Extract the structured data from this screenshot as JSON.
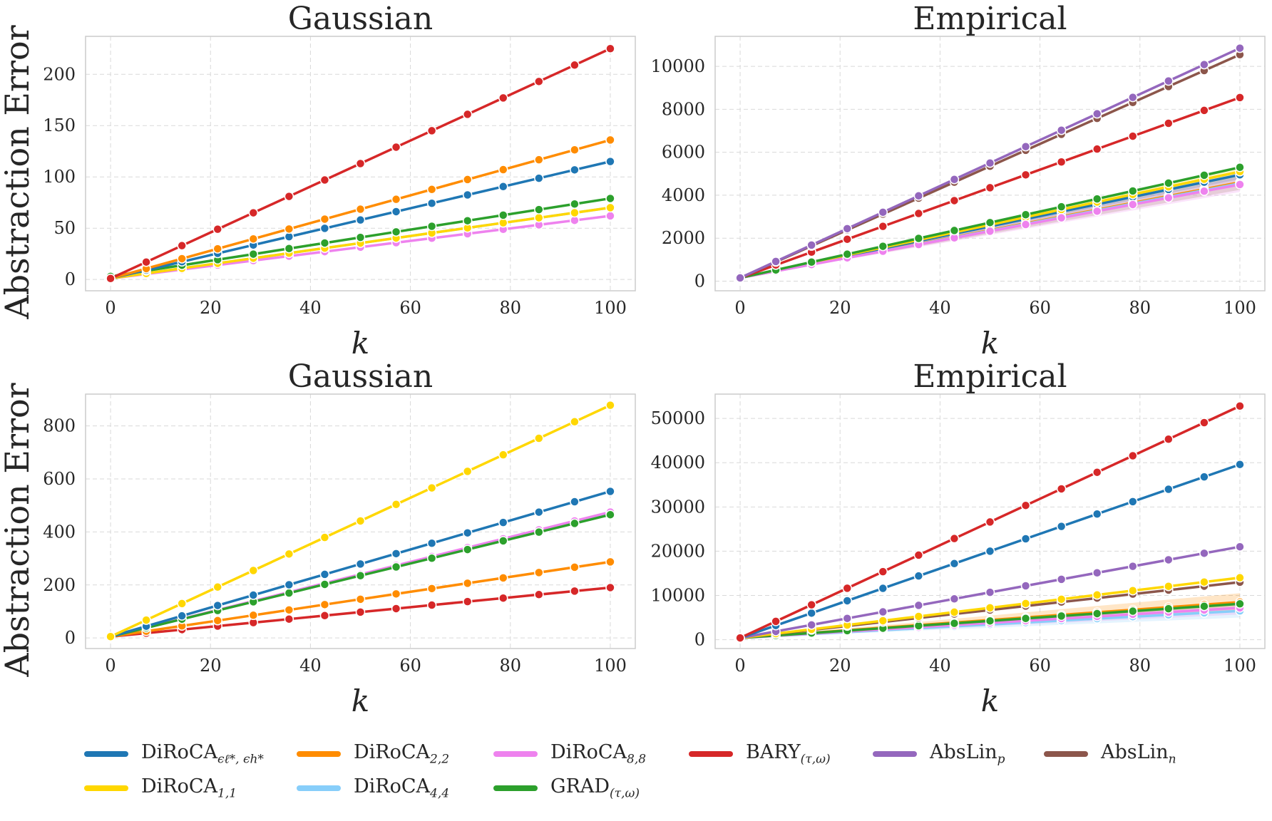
{
  "colors": {
    "grid": "#d9d9d9",
    "axis": "#cccccc",
    "text": "#262626"
  },
  "legend": [
    {
      "key": "diroca_eps",
      "base": "DiRoCA",
      "sub": "ϵℓ*, ϵh*",
      "color": "#1f77b4"
    },
    {
      "key": "diroca_22",
      "base": "DiRoCA",
      "sub": "2,2",
      "color": "#ff8c00"
    },
    {
      "key": "diroca_88",
      "base": "DiRoCA",
      "sub": "8,8",
      "color": "#ee82ee"
    },
    {
      "key": "bary",
      "base": "BARY",
      "sub": "(τ,ω)",
      "color": "#d62728"
    },
    {
      "key": "abslin_p",
      "base": "AbsLin",
      "sub": "p",
      "color": "#9467bd"
    },
    {
      "key": "abslin_n",
      "base": "AbsLin",
      "sub": "n",
      "color": "#8c564b"
    },
    {
      "key": "diroca_11",
      "base": "DiRoCA",
      "sub": "1,1",
      "color": "#ffd700"
    },
    {
      "key": "diroca_44",
      "base": "DiRoCA",
      "sub": "4,4",
      "color": "#87cefa"
    },
    {
      "key": "grad",
      "base": "GRAD",
      "sub": "(τ,ω)",
      "color": "#2ca02c"
    }
  ],
  "chart_data": [
    {
      "type": "line",
      "title": "Gaussian",
      "xlabel": "k",
      "ylabel": "Abstraction Error",
      "xlim": [
        -5,
        105
      ],
      "ylim": [
        -11,
        237
      ],
      "xticks": [
        0,
        20,
        40,
        60,
        80,
        100
      ],
      "yticks": [
        0,
        50,
        100,
        150,
        200
      ],
      "grid": true,
      "k_start": 0,
      "k_end": 100,
      "k_points": 15,
      "series": [
        {
          "key": "diroca_44",
          "start": 1,
          "end": 70,
          "band": 0
        },
        {
          "key": "diroca_88",
          "start": 1,
          "end": 62,
          "band": 0
        },
        {
          "key": "diroca_11",
          "start": 1,
          "end": 70,
          "band": 0
        },
        {
          "key": "grad",
          "start": 3,
          "end": 79,
          "band": 0
        },
        {
          "key": "diroca_eps",
          "start": 1,
          "end": 115,
          "band": 0
        },
        {
          "key": "diroca_22",
          "start": 1,
          "end": 136,
          "band": 0
        },
        {
          "key": "bary",
          "start": 1,
          "end": 225,
          "band": 0
        }
      ]
    },
    {
      "type": "line",
      "title": "Empirical",
      "xlabel": "k",
      "ylabel": "",
      "xlim": [
        -5,
        105
      ],
      "ylim": [
        -450,
        11400
      ],
      "xticks": [
        0,
        20,
        40,
        60,
        80,
        100
      ],
      "yticks": [
        0,
        2000,
        4000,
        6000,
        8000,
        10000
      ],
      "grid": true,
      "k_start": 0,
      "k_end": 100,
      "k_points": 15,
      "series": [
        {
          "key": "diroca_22",
          "start": 150,
          "end": 4600,
          "band": 350
        },
        {
          "key": "diroca_44",
          "start": 150,
          "end": 4550,
          "band": 300
        },
        {
          "key": "diroca_eps",
          "start": 150,
          "end": 4950,
          "band": 200
        },
        {
          "key": "diroca_11",
          "start": 150,
          "end": 5100,
          "band": 150
        },
        {
          "key": "diroca_88",
          "start": 150,
          "end": 4500,
          "band": 350
        },
        {
          "key": "grad",
          "start": 150,
          "end": 5300,
          "band": 0
        },
        {
          "key": "bary",
          "start": 150,
          "end": 8550,
          "band": 0
        },
        {
          "key": "abslin_n",
          "start": 150,
          "end": 10550,
          "band": 0
        },
        {
          "key": "abslin_p",
          "start": 150,
          "end": 10850,
          "band": 0
        }
      ]
    },
    {
      "type": "line",
      "title": "Gaussian",
      "xlabel": "k",
      "ylabel": "Abstraction Error",
      "xlim": [
        -5,
        105
      ],
      "ylim": [
        -40,
        920
      ],
      "xticks": [
        0,
        20,
        40,
        60,
        80,
        100
      ],
      "yticks": [
        0,
        200,
        400,
        600,
        800
      ],
      "grid": true,
      "k_start": 0,
      "k_end": 100,
      "k_points": 15,
      "series": [
        {
          "key": "bary",
          "start": 5,
          "end": 190,
          "band": 0
        },
        {
          "key": "diroca_22",
          "start": 5,
          "end": 287,
          "band": 0
        },
        {
          "key": "diroca_44",
          "start": 5,
          "end": 472,
          "band": 0
        },
        {
          "key": "diroca_88",
          "start": 5,
          "end": 475,
          "band": 0
        },
        {
          "key": "grad",
          "start": 5,
          "end": 465,
          "band": 0
        },
        {
          "key": "diroca_eps",
          "start": 5,
          "end": 553,
          "band": 0
        },
        {
          "key": "diroca_11",
          "start": 5,
          "end": 878,
          "band": 0
        }
      ]
    },
    {
      "type": "line",
      "title": "Empirical",
      "xlabel": "k",
      "ylabel": "",
      "xlim": [
        -5,
        105
      ],
      "ylim": [
        -2000,
        55500
      ],
      "xticks": [
        0,
        20,
        40,
        60,
        80,
        100
      ],
      "yticks": [
        0,
        10000,
        20000,
        30000,
        40000,
        50000
      ],
      "grid": true,
      "k_start": 0,
      "k_end": 100,
      "k_points": 15,
      "series": [
        {
          "key": "diroca_44",
          "start": 400,
          "end": 6500,
          "band": 1500
        },
        {
          "key": "diroca_88",
          "start": 400,
          "end": 7200,
          "band": 1500
        },
        {
          "key": "diroca_22",
          "start": 400,
          "end": 8500,
          "band": 2000
        },
        {
          "key": "grad",
          "start": 400,
          "end": 8100,
          "band": 0
        },
        {
          "key": "abslin_n",
          "start": 400,
          "end": 13000,
          "band": 0
        },
        {
          "key": "diroca_11",
          "start": 400,
          "end": 14000,
          "band": 300
        },
        {
          "key": "abslin_p",
          "start": 400,
          "end": 21000,
          "band": 0
        },
        {
          "key": "diroca_eps",
          "start": 400,
          "end": 39600,
          "band": 0
        },
        {
          "key": "bary",
          "start": 400,
          "end": 52800,
          "band": 0
        }
      ]
    }
  ]
}
